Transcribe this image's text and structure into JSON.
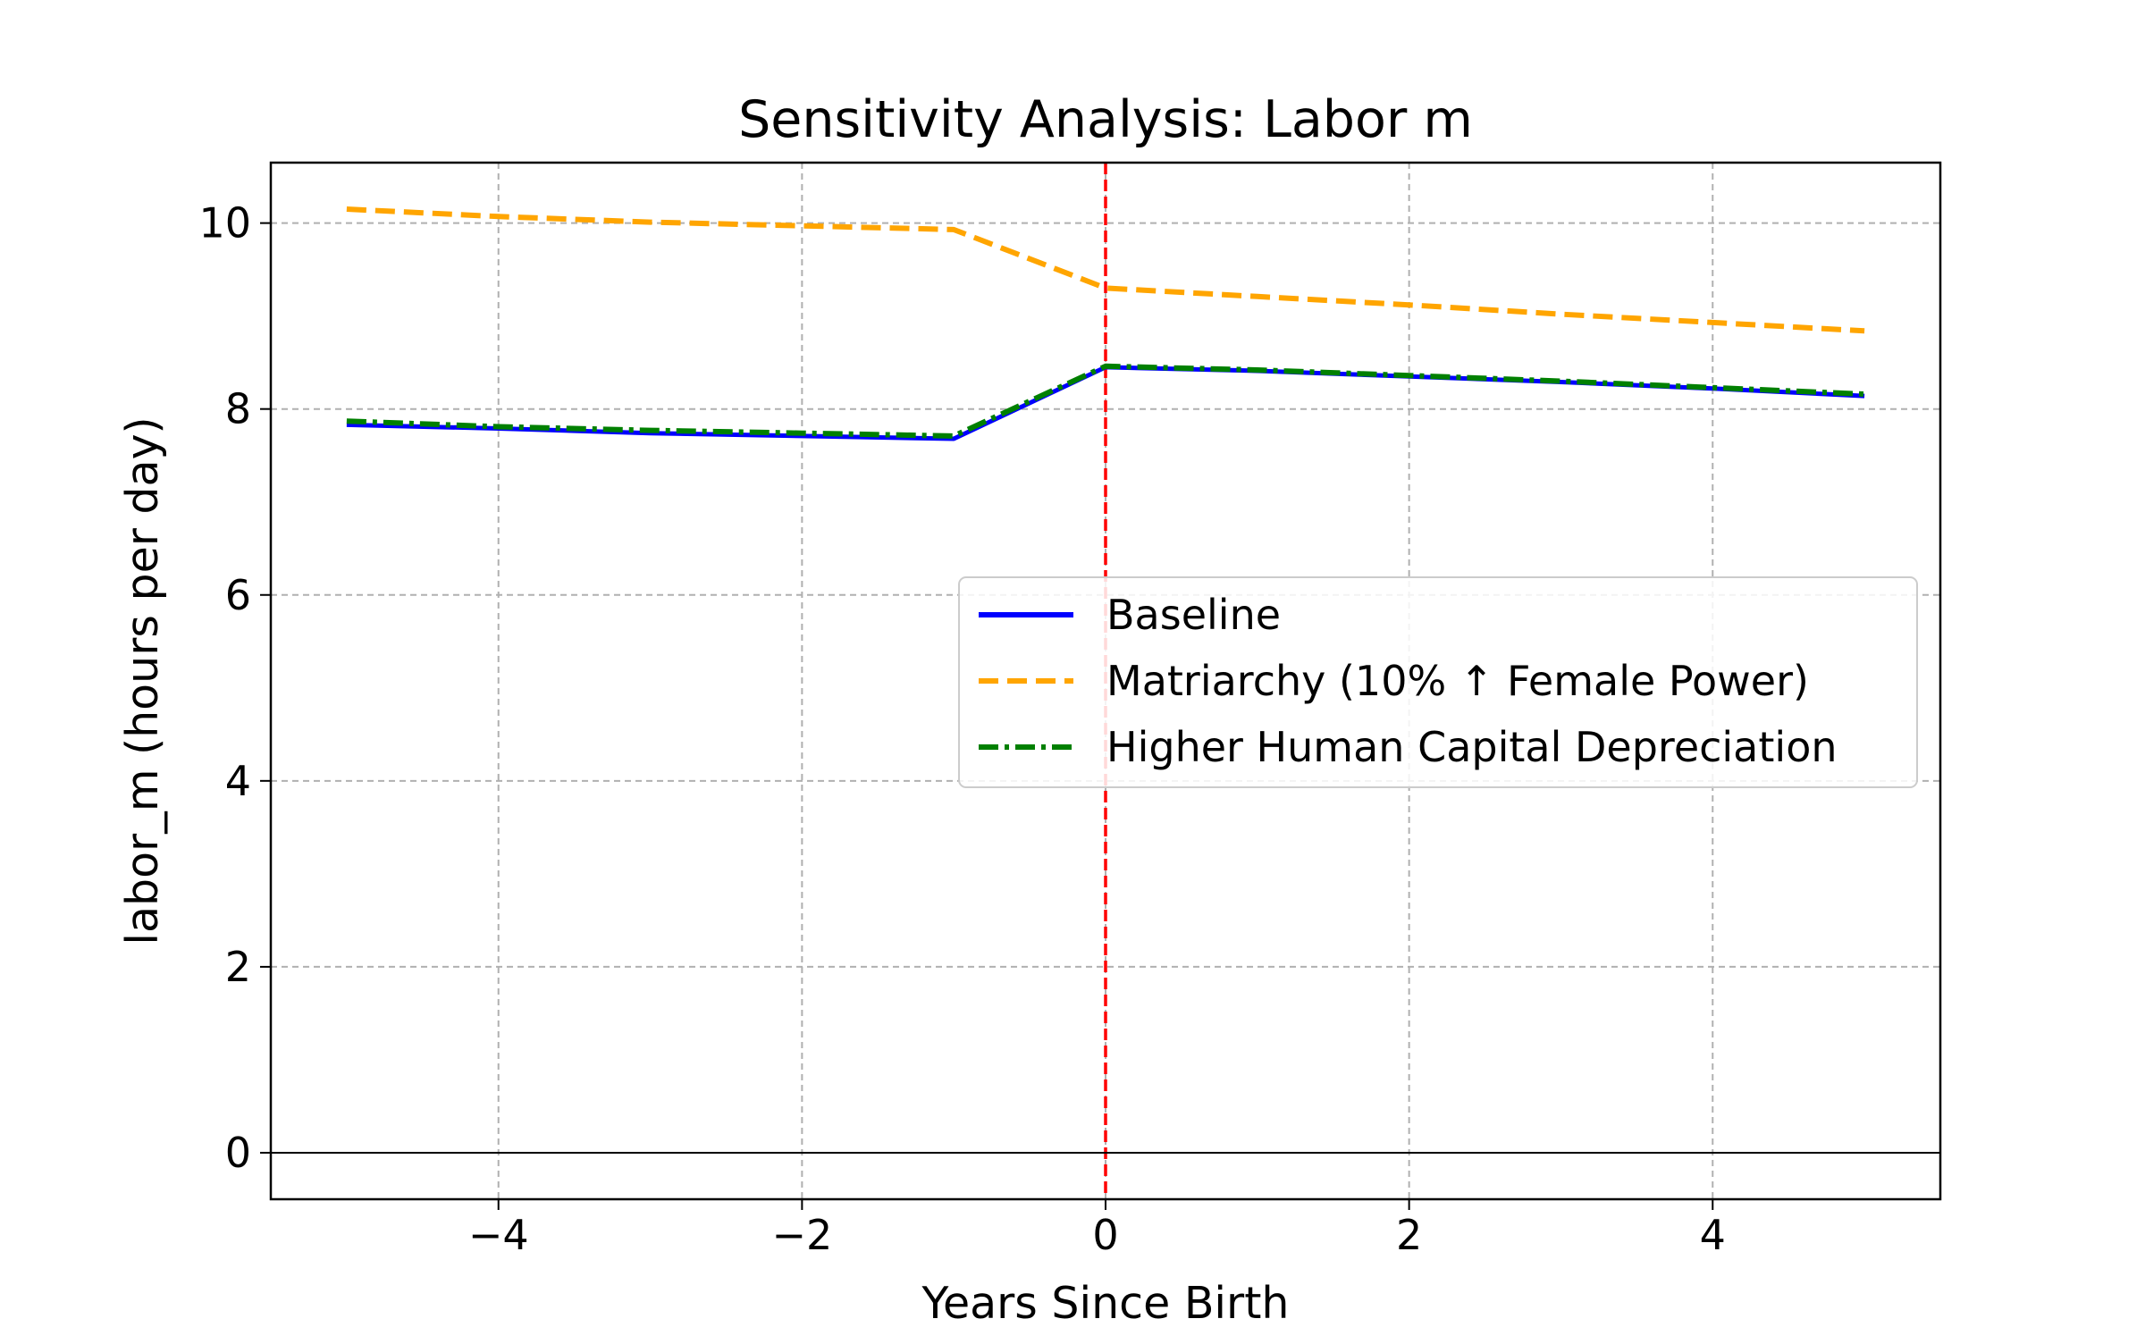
{
  "chart_data": {
    "type": "line",
    "title": "Sensitivity Analysis: Labor m",
    "xlabel": "Years Since Birth",
    "ylabel": "labor_m (hours per day)",
    "xlim": [
      -5.5,
      5.5
    ],
    "ylim": [
      -0.5,
      10.65
    ],
    "xticks": [
      -4,
      -2,
      0,
      2,
      4
    ],
    "xtick_labels": [
      "−4",
      "−2",
      "0",
      "2",
      "4"
    ],
    "yticks": [
      0,
      2,
      4,
      6,
      8,
      10
    ],
    "ytick_labels": [
      "0",
      "2",
      "4",
      "6",
      "8",
      "10"
    ],
    "grid": true,
    "legend_position": "center-right",
    "reference_lines": [
      {
        "orientation": "vertical",
        "value": 0,
        "color": "#ff0000",
        "style": "dashed"
      },
      {
        "orientation": "horizontal",
        "value": 0,
        "color": "#000000",
        "style": "solid"
      }
    ],
    "series": [
      {
        "name": "Baseline",
        "color": "#0000ff",
        "style": "solid",
        "x": [
          -5,
          -4,
          -3,
          -2,
          -1,
          0,
          1,
          2,
          3,
          4,
          5
        ],
        "y": [
          7.83,
          7.79,
          7.74,
          7.71,
          7.68,
          8.45,
          8.41,
          8.35,
          8.29,
          8.22,
          8.14
        ]
      },
      {
        "name": "Matriarchy (10% ↑ Female Power)",
        "color": "#ffa500",
        "style": "dashed",
        "x": [
          -5,
          -4,
          -3,
          -2,
          -1,
          0,
          1,
          2,
          3,
          4,
          5
        ],
        "y": [
          10.15,
          10.07,
          10.01,
          9.97,
          9.93,
          9.3,
          9.21,
          9.12,
          9.02,
          8.93,
          8.84
        ]
      },
      {
        "name": "Higher Human Capital Depreciation",
        "color": "#008000",
        "style": "dashdot",
        "x": [
          -5,
          -4,
          -3,
          -2,
          -1,
          0,
          1,
          2,
          3,
          4,
          5
        ],
        "y": [
          7.87,
          7.81,
          7.77,
          7.74,
          7.71,
          8.46,
          8.42,
          8.36,
          8.3,
          8.23,
          8.16
        ]
      }
    ]
  }
}
